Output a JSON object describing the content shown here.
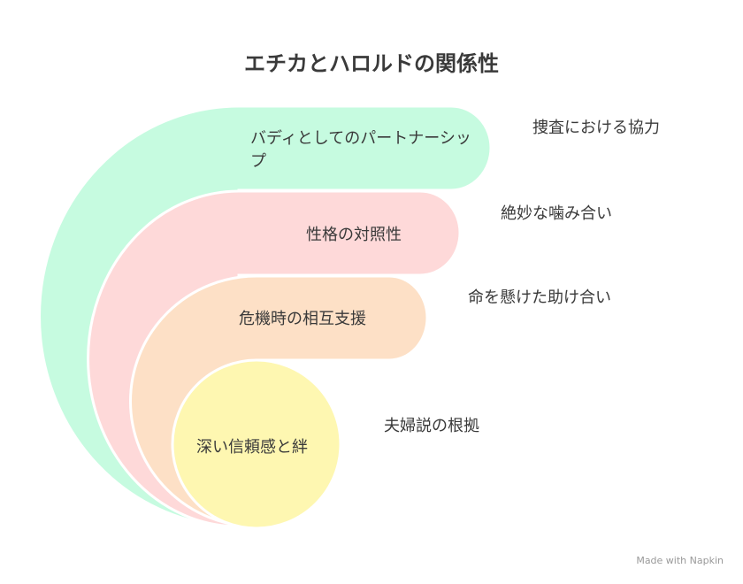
{
  "title": "エチカとハロルドの関係性",
  "layers": [
    {
      "label": "バディとしてのパートナーシップ",
      "description": "捜査における協力"
    },
    {
      "label": "性格の対照性",
      "description": "絶妙な噛み合い"
    },
    {
      "label": "危機時の相互支援",
      "description": "命を懸けた助け合い"
    },
    {
      "label": "深い信頼感と絆",
      "description": "夫婦説の根拠"
    }
  ],
  "footer": "Made with Napkin"
}
